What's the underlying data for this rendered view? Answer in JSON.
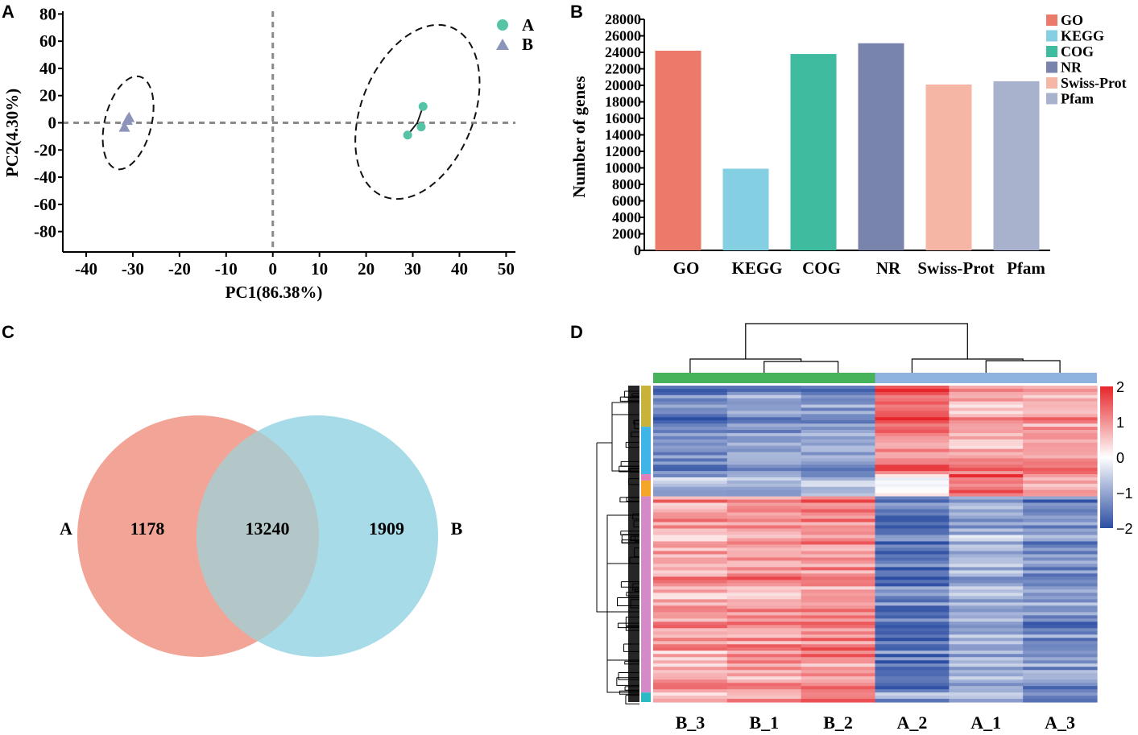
{
  "panel_labels": {
    "a": "A",
    "b": "B",
    "c": "C",
    "d": "D"
  },
  "chart_data": [
    {
      "panel": "A",
      "type": "scatter",
      "xlabel": "PC1(86.38%)",
      "ylabel": "PC2(4.30%)",
      "xlim": [
        -45,
        52
      ],
      "ylim": [
        -95,
        82
      ],
      "xticks": [
        -40,
        -30,
        -20,
        -10,
        0,
        10,
        20,
        30,
        40,
        50
      ],
      "yticks": [
        80,
        60,
        40,
        20,
        0,
        -20,
        -40,
        -60,
        -80
      ],
      "xtick_labels": [
        "-40",
        "-30",
        "-20",
        "-10",
        "0",
        "10",
        "20",
        "30",
        "40",
        "50"
      ],
      "ytick_labels": [
        "80",
        "60",
        "40",
        "20",
        "0",
        "-20",
        "-40",
        "-60",
        "-80"
      ],
      "series": [
        {
          "name": "A",
          "marker": "circle",
          "color": "#55c4a6",
          "points": [
            [
              32.2,
              12
            ],
            [
              31.8,
              -3
            ],
            [
              28.9,
              -9
            ]
          ],
          "ellipse": {
            "cx": 31,
            "cy": 8,
            "rx": 12,
            "ry": 67,
            "angle": -22
          }
        },
        {
          "name": "B",
          "marker": "triangle",
          "color": "#8c95b9",
          "points": [
            [
              -30.8,
              4
            ],
            [
              -31.8,
              -3
            ],
            [
              -31.2,
              2
            ]
          ],
          "ellipse": {
            "cx": -31,
            "cy": 0,
            "rx": 5,
            "ry": 35,
            "angle": -14
          }
        }
      ],
      "legend": [
        "A",
        "B"
      ]
    },
    {
      "panel": "B",
      "type": "bar",
      "ylabel": "Number of genes",
      "categories": [
        "GO",
        "KEGG",
        "COG",
        "NR",
        "Swiss-Prot",
        "Pfam"
      ],
      "values": [
        24200,
        9900,
        23800,
        25100,
        20100,
        20500
      ],
      "colors": [
        "#ec7a6a",
        "#84cfe2",
        "#3fbba0",
        "#7984ad",
        "#f6b6a5",
        "#a9b2cc"
      ],
      "ylim": [
        0,
        28000
      ],
      "yticks": [
        0,
        2000,
        4000,
        6000,
        8000,
        10000,
        12000,
        14000,
        16000,
        18000,
        20000,
        22000,
        24000,
        26000,
        28000
      ],
      "ytick_labels": [
        "0",
        "2000",
        "4000",
        "6000",
        "8000",
        "10000",
        "12000",
        "14000",
        "16000",
        "18000",
        "20000",
        "22000",
        "24000",
        "26000",
        "28000"
      ],
      "legend": [
        "GO",
        "KEGG",
        "COG",
        "NR",
        "Swiss-Prot",
        "Pfam"
      ]
    },
    {
      "panel": "C",
      "type": "venn",
      "sets": [
        "A",
        "B"
      ],
      "only_A": "1178",
      "intersection": "13240",
      "only_B": "1909",
      "colors": [
        "#f2a496",
        "#a7dbe8"
      ]
    },
    {
      "panel": "D",
      "type": "heatmap",
      "columns": [
        "B_3",
        "B_1",
        "B_2",
        "A_2",
        "A_1",
        "A_3"
      ],
      "column_groups": [
        {
          "name": "B",
          "color": "#46b35a",
          "count": 3
        },
        {
          "name": "A",
          "color": "#8db3de",
          "count": 3
        }
      ],
      "colorbar": {
        "min": -2,
        "max": 2,
        "ticks": [
          2,
          1,
          0,
          -1,
          -2
        ],
        "tick_labels": [
          "2",
          "1",
          "0",
          "−1",
          "−2"
        ],
        "colors": [
          "#2b4da2",
          "#ffffff",
          "#e6262b"
        ]
      },
      "row_clusters": [
        {
          "color": "#c9b23a",
          "fraction": 0.13,
          "values": [
            -1.6,
            -1.3,
            -1.3,
            1.6,
            0.8,
            1.0
          ]
        },
        {
          "color": "#3fb4e6",
          "fraction": 0.15,
          "values": [
            -1.4,
            -1.2,
            -1.1,
            1.2,
            1.0,
            1.1
          ]
        },
        {
          "color": "#e07fb8",
          "fraction": 0.02,
          "values": [
            -1.0,
            -0.9,
            -1.0,
            0.3,
            1.8,
            0.9
          ]
        },
        {
          "color": "#f4a62a",
          "fraction": 0.05,
          "values": [
            -0.9,
            -1.0,
            -0.9,
            0.1,
            1.6,
            1.0
          ]
        },
        {
          "color": "#d38ac7",
          "fraction": 0.62,
          "values": [
            0.9,
            1.0,
            1.1,
            -1.6,
            -0.9,
            -1.3
          ]
        },
        {
          "color": "#2bbac4",
          "fraction": 0.03,
          "values": [
            0.7,
            0.9,
            1.3,
            -1.0,
            -1.0,
            -1.6
          ]
        }
      ]
    }
  ]
}
